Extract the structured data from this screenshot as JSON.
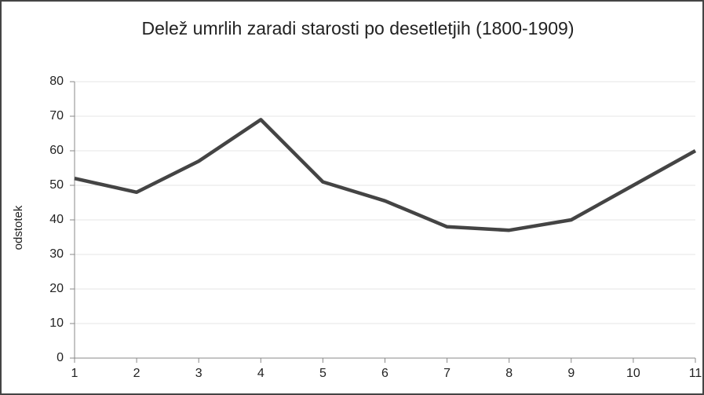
{
  "chart_data": {
    "type": "line",
    "title": "Delež umrlih zaradi starosti po desetletjih (1800-1909)",
    "y_label": "odstotek",
    "x": [
      1,
      2,
      3,
      4,
      5,
      6,
      7,
      8,
      9,
      10,
      11
    ],
    "series": [
      {
        "name": "odstotek",
        "color": "#444444",
        "values": [
          52,
          48,
          57,
          69,
          51,
          45.5,
          38,
          37,
          40,
          50,
          60
        ]
      }
    ],
    "xlim": [
      1,
      11
    ],
    "xticks": [
      1,
      2,
      3,
      4,
      5,
      6,
      7,
      8,
      9,
      10,
      11
    ],
    "ylim": [
      0,
      80
    ],
    "yticks": [
      0,
      10,
      20,
      30,
      40,
      50,
      60,
      70,
      80
    ],
    "grid": true
  }
}
